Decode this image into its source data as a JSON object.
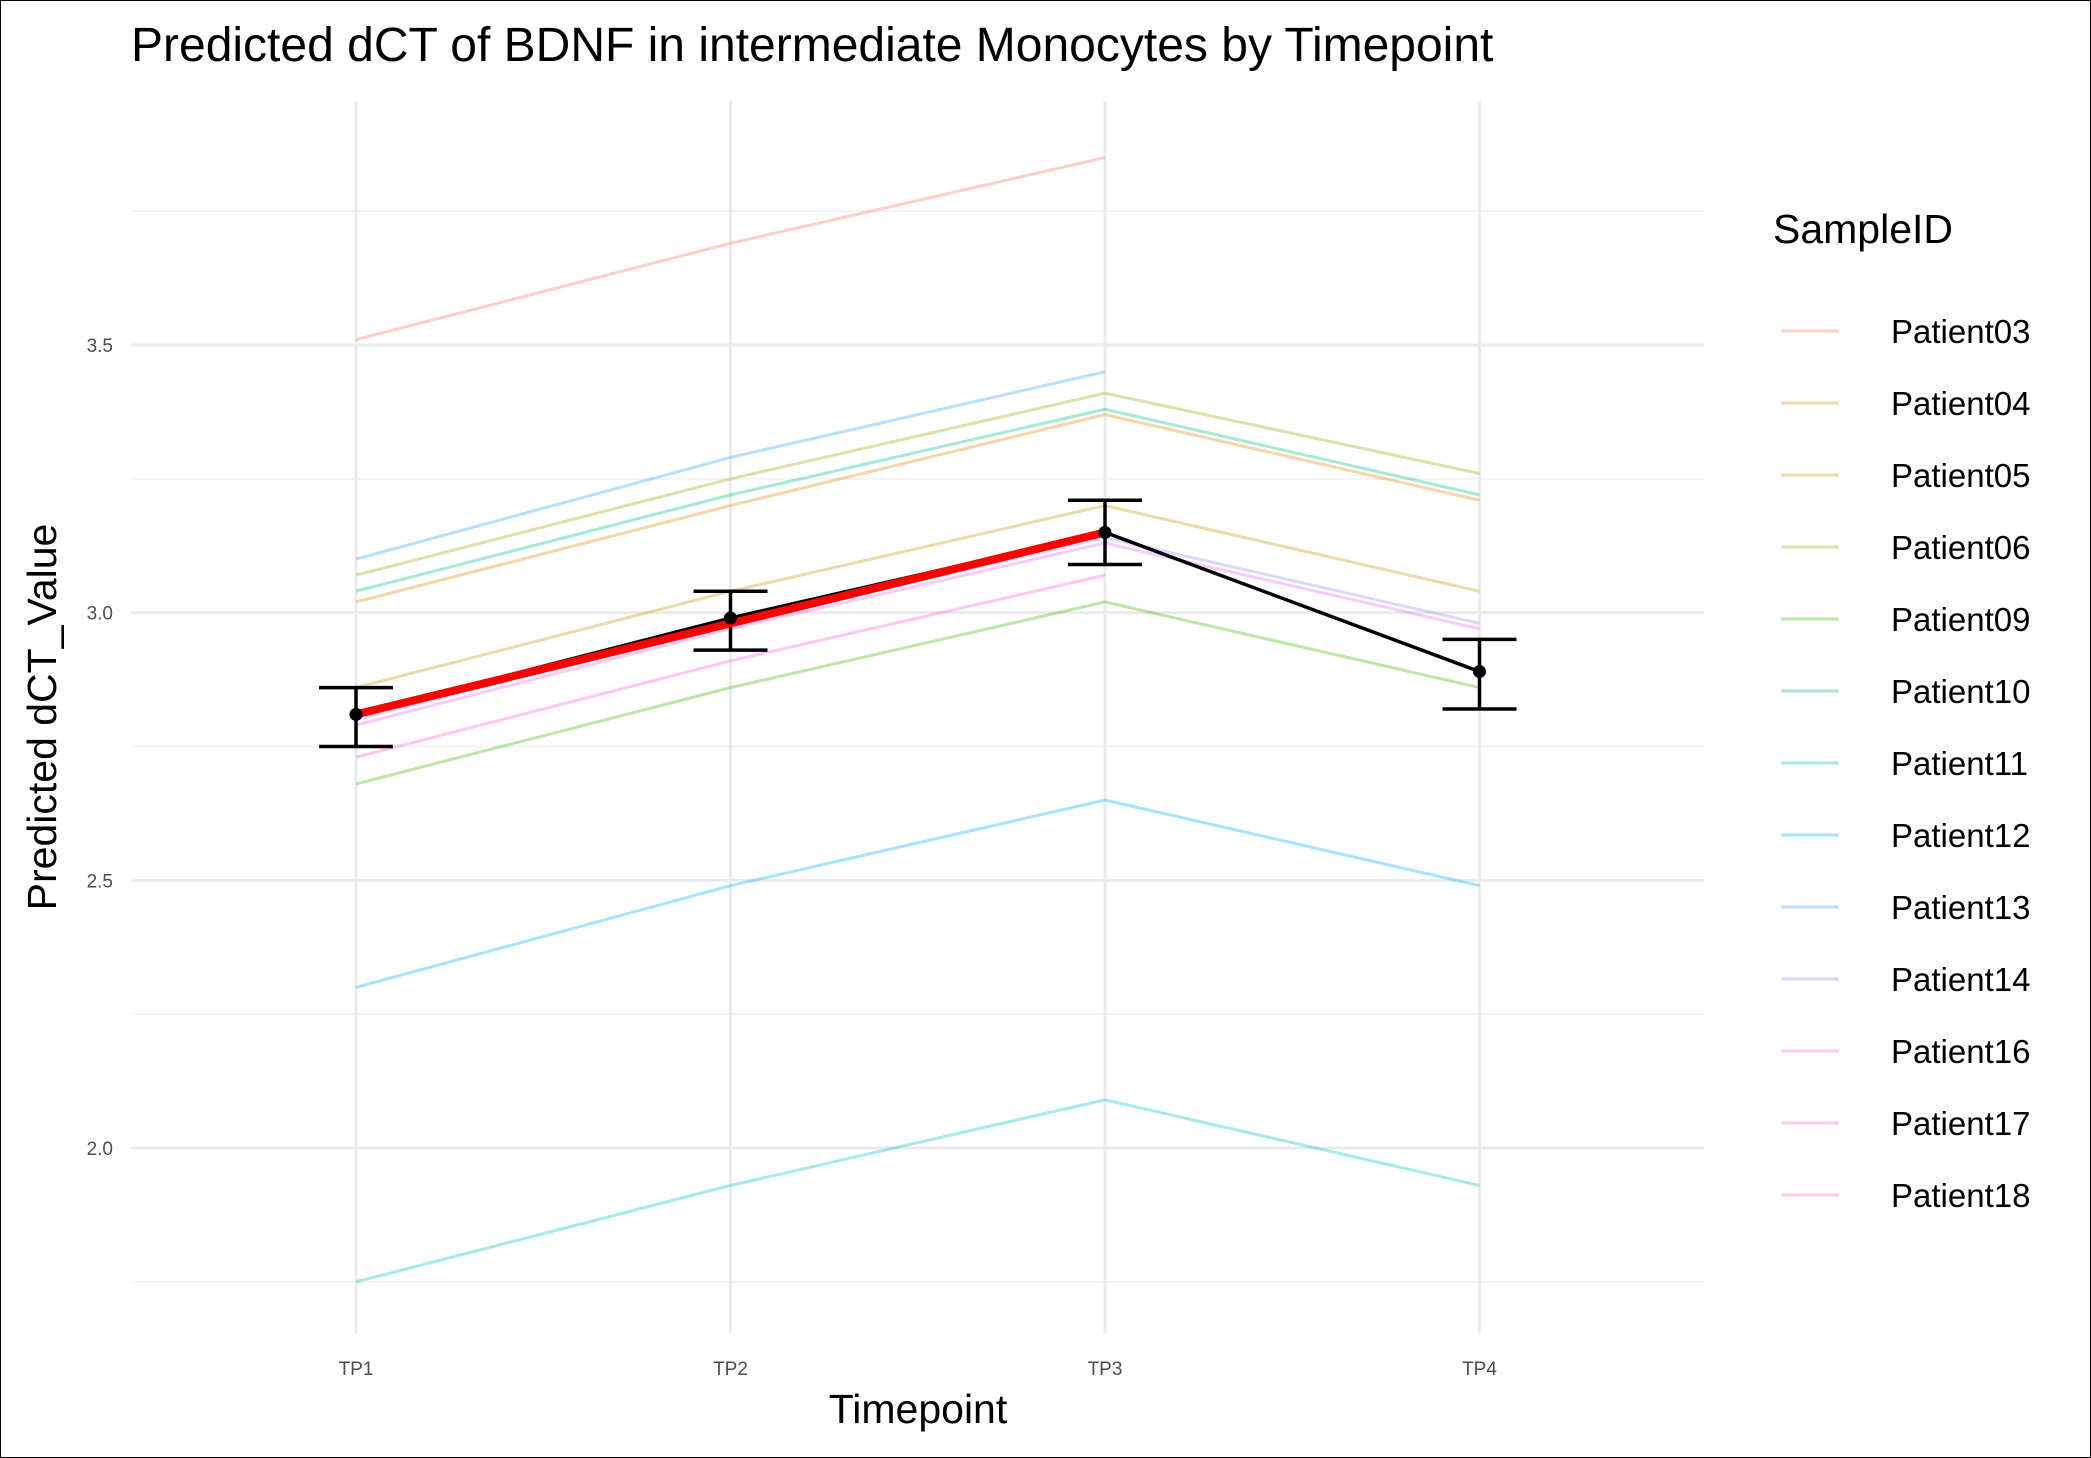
{
  "chart_data": {
    "type": "line",
    "title": "Predicted dCT of  BDNF in  intermediate  Monocytes by Timepoint",
    "xlabel": "Timepoint",
    "ylabel": "Predicted dCT_Value",
    "categories": [
      "TP1",
      "TP2",
      "TP3",
      "TP4"
    ],
    "ylim": [
      1.75,
      3.85
    ],
    "yticks": [
      2.0,
      2.5,
      3.0,
      3.5
    ],
    "yticklabels": [
      "2.0",
      "2.5",
      "3.0",
      "3.5"
    ],
    "grid": true,
    "legend": {
      "title": "SampleID",
      "position": "right"
    },
    "series": [
      {
        "name": "Patient03",
        "color": "#f8766d",
        "values": [
          3.51,
          3.69,
          3.85,
          null
        ]
      },
      {
        "name": "Patient04",
        "color": "#e58700",
        "values": [
          3.02,
          3.2,
          3.37,
          3.21
        ]
      },
      {
        "name": "Patient05",
        "color": "#c99800",
        "values": [
          2.86,
          3.04,
          3.2,
          3.04
        ]
      },
      {
        "name": "Patient06",
        "color": "#a3a500",
        "values": [
          3.07,
          3.25,
          3.41,
          3.26
        ]
      },
      {
        "name": "Patient09",
        "color": "#39b600",
        "values": [
          2.68,
          2.86,
          3.02,
          2.86
        ]
      },
      {
        "name": "Patient10",
        "color": "#00bf7d",
        "values": [
          3.04,
          3.22,
          3.38,
          3.22
        ]
      },
      {
        "name": "Patient11",
        "color": "#00bfc4",
        "values": [
          1.75,
          1.93,
          2.09,
          1.93
        ]
      },
      {
        "name": "Patient12",
        "color": "#00b0f6",
        "values": [
          2.3,
          2.49,
          2.65,
          2.49
        ]
      },
      {
        "name": "Patient13",
        "color": "#35a2ff",
        "values": [
          3.1,
          3.29,
          3.45,
          null
        ]
      },
      {
        "name": "Patient14",
        "color": "#9590ff",
        "values": [
          2.8,
          2.98,
          3.14,
          2.98
        ]
      },
      {
        "name": "Patient16",
        "color": "#e76bf3",
        "values": [
          2.79,
          2.97,
          3.13,
          2.97
        ]
      },
      {
        "name": "Patient17",
        "color": "#fa62db",
        "values": [
          2.73,
          2.91,
          3.07,
          null
        ]
      },
      {
        "name": "Patient18",
        "color": "#ff62bc",
        "values": [
          null,
          null,
          null,
          null
        ]
      }
    ],
    "mean": {
      "values": [
        2.81,
        2.99,
        3.15,
        2.89
      ],
      "lower": [
        2.75,
        2.93,
        3.09,
        2.82
      ],
      "upper": [
        2.86,
        3.04,
        3.21,
        2.95
      ],
      "color": "#000000"
    },
    "highlight": {
      "values": [
        2.81,
        2.98,
        3.15
      ],
      "color": "#ff0000"
    }
  }
}
